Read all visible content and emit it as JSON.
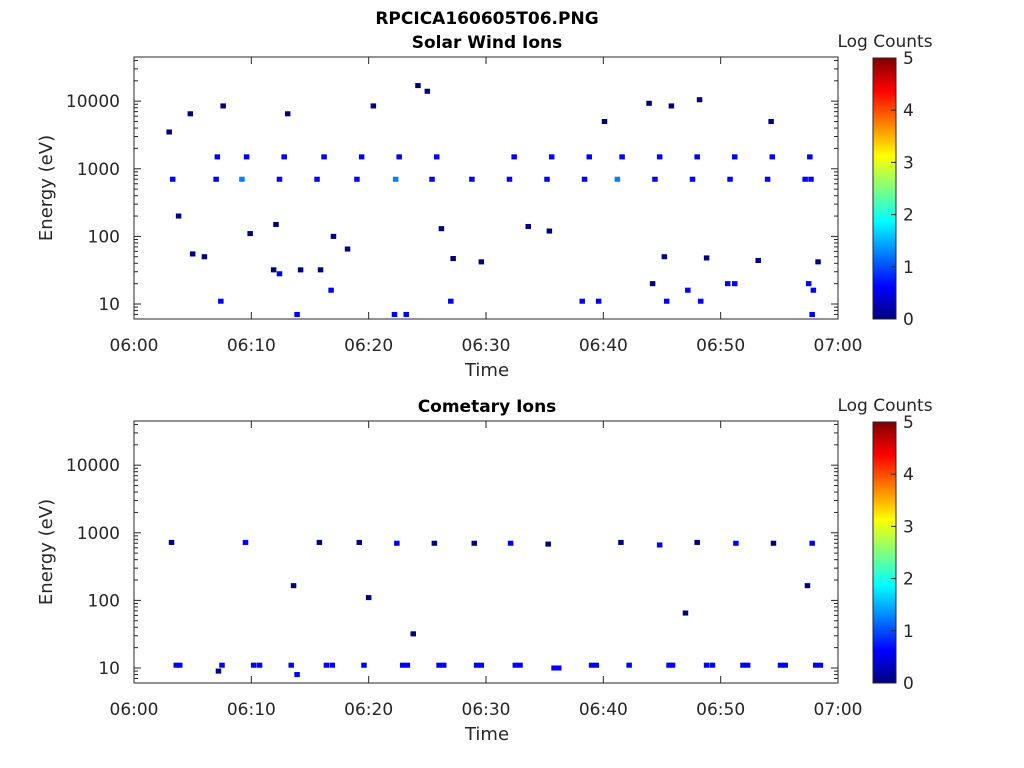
{
  "figure": {
    "filename": "RPCICA160605T06.PNG"
  },
  "colors": {
    "axis": "#262626",
    "colormap": [
      "#00007f",
      "#0000ff",
      "#007fff",
      "#00ffff",
      "#7fff7f",
      "#ffff00",
      "#ff7f00",
      "#ff0000",
      "#7f0000"
    ]
  },
  "chart_data": [
    {
      "type": "heatmap",
      "title": "Solar Wind Ions",
      "xlabel": "Time",
      "ylabel": "Energy (eV)",
      "x_unit": "minutes after 06:00",
      "x_ticks": [
        "06:00",
        "06:10",
        "06:20",
        "06:30",
        "06:40",
        "06:50",
        "07:00"
      ],
      "xlim": [
        0,
        60
      ],
      "y_scale": "log",
      "ylim": [
        6,
        45000
      ],
      "y_ticks": [
        "10",
        "100",
        "1000",
        "10000"
      ],
      "colorbar": {
        "label": "Log Counts",
        "range": [
          0,
          5
        ],
        "ticks": [
          "0",
          "1",
          "2",
          "3",
          "4",
          "5"
        ]
      },
      "cells": [
        [
          7.0,
          700,
          0.6
        ],
        [
          9.2,
          700,
          1.1
        ],
        [
          12.4,
          700,
          0.7
        ],
        [
          15.6,
          700,
          0.6
        ],
        [
          19.0,
          700,
          0.7
        ],
        [
          22.3,
          700,
          1.0
        ],
        [
          25.4,
          700,
          0.9
        ],
        [
          28.8,
          700,
          0.8
        ],
        [
          32.0,
          700,
          0.9
        ],
        [
          35.2,
          700,
          0.8
        ],
        [
          38.4,
          700,
          0.8
        ],
        [
          41.2,
          700,
          1.0
        ],
        [
          44.4,
          700,
          0.9
        ],
        [
          47.6,
          700,
          0.8
        ],
        [
          50.8,
          700,
          0.7
        ],
        [
          54.0,
          700,
          0.9
        ],
        [
          57.2,
          700,
          0.6
        ],
        [
          57.7,
          700,
          0.7
        ],
        [
          3.3,
          700,
          0.6
        ],
        [
          7.1,
          1500,
          0.6
        ],
        [
          12.8,
          1500,
          0.6
        ],
        [
          22.6,
          1500,
          0.6
        ],
        [
          38.8,
          1500,
          0.6
        ],
        [
          41.6,
          1500,
          0.6
        ],
        [
          44.8,
          1500,
          0.6
        ],
        [
          48.0,
          1500,
          0.5
        ],
        [
          51.2,
          1500,
          0.5
        ],
        [
          54.4,
          1500,
          0.5
        ],
        [
          57.6,
          1500,
          0.6
        ],
        [
          35.6,
          1500,
          0.5
        ],
        [
          32.4,
          1500,
          0.4
        ],
        [
          25.8,
          1500,
          0.4
        ],
        [
          19.4,
          1500,
          0.4
        ],
        [
          16.2,
          1500,
          0.4
        ],
        [
          9.6,
          1500,
          0.4
        ],
        [
          3.0,
          3500,
          0.3
        ],
        [
          4.8,
          6500,
          0.3
        ],
        [
          7.6,
          8500,
          0.3
        ],
        [
          13.1,
          6500,
          0.3
        ],
        [
          20.4,
          8500,
          0.3
        ],
        [
          24.2,
          17000,
          0.3
        ],
        [
          25.0,
          14000,
          0.3
        ],
        [
          40.1,
          5000,
          0.3
        ],
        [
          43.9,
          9300,
          0.3
        ],
        [
          45.8,
          8500,
          0.3
        ],
        [
          48.2,
          10500,
          0.3
        ],
        [
          54.3,
          5000,
          0.3
        ],
        [
          3.8,
          200,
          0.3
        ],
        [
          9.9,
          110,
          0.3
        ],
        [
          12.1,
          150,
          0.3
        ],
        [
          17.0,
          100,
          0.3
        ],
        [
          26.2,
          130,
          0.3
        ],
        [
          33.6,
          140,
          0.3
        ],
        [
          35.4,
          120,
          0.3
        ],
        [
          5.0,
          55,
          0.3
        ],
        [
          6.0,
          50,
          0.3
        ],
        [
          18.2,
          65,
          0.3
        ],
        [
          27.2,
          47,
          0.3
        ],
        [
          29.6,
          42,
          0.3
        ],
        [
          45.2,
          50,
          0.3
        ],
        [
          48.8,
          48,
          0.3
        ],
        [
          53.2,
          44,
          0.3
        ],
        [
          58.3,
          42,
          0.3
        ],
        [
          11.9,
          32,
          0.3
        ],
        [
          12.4,
          28,
          0.4
        ],
        [
          14.2,
          32,
          0.3
        ],
        [
          15.9,
          32,
          0.3
        ],
        [
          16.8,
          16,
          0.4
        ],
        [
          44.2,
          20,
          0.3
        ],
        [
          47.2,
          16,
          0.4
        ],
        [
          50.6,
          20,
          0.4
        ],
        [
          51.2,
          20,
          0.4
        ],
        [
          57.5,
          20,
          0.4
        ],
        [
          57.9,
          16,
          0.4
        ],
        [
          7.4,
          11,
          0.4
        ],
        [
          13.9,
          7,
          0.6
        ],
        [
          22.2,
          7,
          0.4
        ],
        [
          23.2,
          7,
          0.4
        ],
        [
          27.0,
          11,
          0.5
        ],
        [
          38.2,
          11,
          0.4
        ],
        [
          39.6,
          11,
          0.4
        ],
        [
          45.4,
          11,
          0.4
        ],
        [
          48.3,
          11,
          0.5
        ],
        [
          57.8,
          7,
          0.5
        ]
      ]
    },
    {
      "type": "heatmap",
      "title": "Cometary Ions",
      "xlabel": "Time",
      "ylabel": "Energy (eV)",
      "x_unit": "minutes after 06:00",
      "x_ticks": [
        "06:00",
        "06:10",
        "06:20",
        "06:30",
        "06:40",
        "06:50",
        "07:00"
      ],
      "xlim": [
        0,
        60
      ],
      "y_scale": "log",
      "ylim": [
        6,
        45000
      ],
      "y_ticks": [
        "10",
        "100",
        "1000",
        "10000"
      ],
      "colorbar": {
        "label": "Log Counts",
        "range": [
          0,
          5
        ],
        "ticks": [
          "0",
          "1",
          "2",
          "3",
          "4",
          "5"
        ]
      },
      "cells": [
        [
          3.2,
          720,
          0.3
        ],
        [
          9.5,
          720,
          0.4
        ],
        [
          15.8,
          720,
          0.3
        ],
        [
          19.2,
          720,
          0.3
        ],
        [
          22.4,
          700,
          0.4
        ],
        [
          25.6,
          700,
          0.3
        ],
        [
          29.0,
          700,
          0.3
        ],
        [
          32.1,
          700,
          0.4
        ],
        [
          35.3,
          680,
          0.3
        ],
        [
          41.5,
          720,
          0.3
        ],
        [
          44.8,
          660,
          0.5
        ],
        [
          48.0,
          720,
          0.3
        ],
        [
          51.3,
          700,
          0.4
        ],
        [
          54.5,
          700,
          0.3
        ],
        [
          57.8,
          700,
          0.4
        ],
        [
          13.6,
          165,
          0.3
        ],
        [
          20.0,
          110,
          0.3
        ],
        [
          23.8,
          32,
          0.3
        ],
        [
          47.0,
          65,
          0.3
        ],
        [
          57.4,
          165,
          0.3
        ],
        [
          3.6,
          11,
          0.6
        ],
        [
          3.9,
          11,
          0.5
        ],
        [
          7.2,
          9,
          0.3
        ],
        [
          7.5,
          11,
          0.8
        ],
        [
          10.2,
          11,
          0.5
        ],
        [
          10.7,
          11,
          0.5
        ],
        [
          13.4,
          11,
          0.4
        ],
        [
          13.9,
          8,
          0.4
        ],
        [
          16.4,
          11,
          0.5
        ],
        [
          16.9,
          11,
          0.6
        ],
        [
          19.6,
          11,
          0.6
        ],
        [
          22.9,
          11,
          0.6
        ],
        [
          23.3,
          11,
          0.5
        ],
        [
          26.0,
          11,
          0.6
        ],
        [
          26.4,
          11,
          0.5
        ],
        [
          29.2,
          11,
          0.6
        ],
        [
          29.6,
          11,
          0.4
        ],
        [
          32.5,
          11,
          0.6
        ],
        [
          32.9,
          11,
          0.6
        ],
        [
          35.8,
          10,
          0.5
        ],
        [
          36.2,
          10,
          0.6
        ],
        [
          39.0,
          11,
          0.6
        ],
        [
          39.4,
          11,
          0.5
        ],
        [
          42.2,
          11,
          0.5
        ],
        [
          45.6,
          11,
          0.6
        ],
        [
          45.9,
          11,
          0.4
        ],
        [
          48.8,
          11,
          0.7
        ],
        [
          49.3,
          11,
          0.5
        ],
        [
          51.9,
          11,
          0.7
        ],
        [
          52.3,
          11,
          0.6
        ],
        [
          55.1,
          11,
          0.5
        ],
        [
          55.5,
          11,
          0.5
        ],
        [
          58.1,
          11,
          0.6
        ],
        [
          58.5,
          11,
          0.5
        ]
      ]
    }
  ]
}
